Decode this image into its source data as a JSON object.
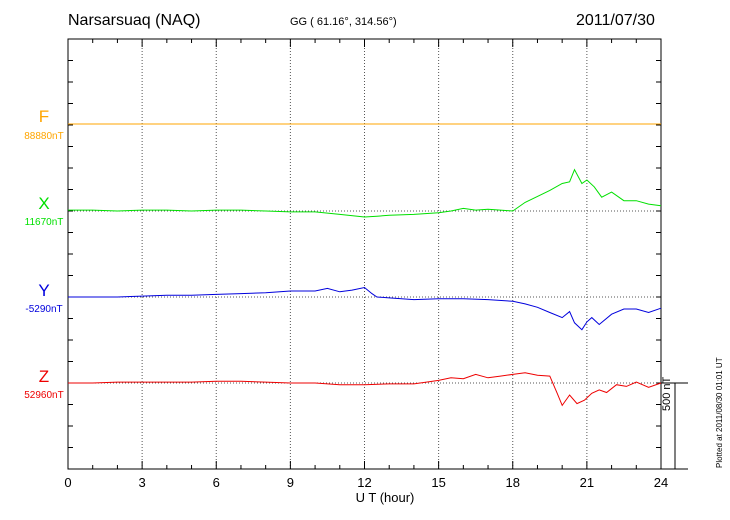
{
  "header": {
    "station": "Narsarsuaq (NAQ)",
    "coords": "GG ( 61.16°, 314.56°)",
    "date": "2011/07/30"
  },
  "footer": {
    "xlabel": "U T (hour)",
    "scale_label": "500 nT",
    "plotted": "Plotted at 2011/08/30 01:01 UT"
  },
  "chart_data": {
    "type": "line",
    "x_ticks": [
      "0",
      "3",
      "6",
      "9",
      "12",
      "15",
      "18",
      "21",
      "24"
    ],
    "xlim": [
      0,
      24
    ],
    "grid": true,
    "scale_bar_nT": 500,
    "series": [
      {
        "name": "F",
        "baseline": "88880nT",
        "color": "#ffa500",
        "x": [
          0,
          24
        ],
        "y": [
          0,
          0
        ]
      },
      {
        "name": "X",
        "baseline": "11670nT",
        "color": "#00e000",
        "x": [
          0,
          1,
          2,
          3,
          4,
          5,
          6,
          7,
          8,
          9,
          10,
          11,
          12,
          12.5,
          13,
          14,
          15,
          15.5,
          16,
          16.5,
          17,
          17.5,
          18,
          18.5,
          19,
          19.5,
          20,
          20.3,
          20.5,
          20.8,
          21,
          21.3,
          21.6,
          22,
          22.5,
          23,
          23.5,
          24
        ],
        "y": [
          5,
          5,
          0,
          5,
          5,
          0,
          5,
          5,
          0,
          -5,
          -5,
          -20,
          -35,
          -30,
          -25,
          -20,
          -10,
          0,
          15,
          5,
          10,
          5,
          0,
          50,
          85,
          120,
          160,
          170,
          240,
          160,
          180,
          140,
          80,
          110,
          60,
          60,
          40,
          30
        ]
      },
      {
        "name": "Y",
        "baseline": "-5290nT",
        "color": "#0000dd",
        "x": [
          0,
          1,
          2,
          3,
          4,
          5,
          6,
          7,
          8,
          9,
          10,
          10.5,
          11,
          11.5,
          12,
          12.3,
          12.5,
          13,
          14,
          15,
          16,
          17,
          18,
          18.5,
          19,
          19.5,
          20,
          20.3,
          20.5,
          20.8,
          21,
          21.2,
          21.5,
          22,
          22.5,
          23,
          23.5,
          24
        ],
        "y": [
          0,
          0,
          0,
          5,
          10,
          10,
          15,
          20,
          25,
          35,
          35,
          50,
          30,
          40,
          55,
          20,
          0,
          -5,
          -15,
          -10,
          -10,
          -15,
          -25,
          -40,
          -60,
          -90,
          -120,
          -85,
          -150,
          -190,
          -145,
          -120,
          -160,
          -100,
          -70,
          -70,
          -90,
          -65
        ]
      },
      {
        "name": "Z",
        "baseline": "52960nT",
        "color": "#ee0000",
        "x": [
          0,
          1,
          2,
          3,
          4,
          5,
          6,
          7,
          8,
          9,
          10,
          11,
          12,
          13,
          14,
          15,
          15.5,
          16,
          16.5,
          17,
          17.5,
          18,
          18.5,
          19,
          19.5,
          19.8,
          20,
          20.3,
          20.6,
          20.9,
          21.2,
          21.5,
          21.8,
          22.2,
          22.6,
          23,
          23.5,
          24
        ],
        "y": [
          0,
          0,
          5,
          5,
          5,
          5,
          10,
          10,
          5,
          0,
          0,
          -10,
          -10,
          -5,
          -5,
          15,
          30,
          25,
          50,
          30,
          40,
          50,
          60,
          45,
          40,
          -60,
          -130,
          -70,
          -120,
          -100,
          -60,
          -40,
          -55,
          -10,
          -20,
          5,
          -25,
          0
        ]
      }
    ]
  }
}
